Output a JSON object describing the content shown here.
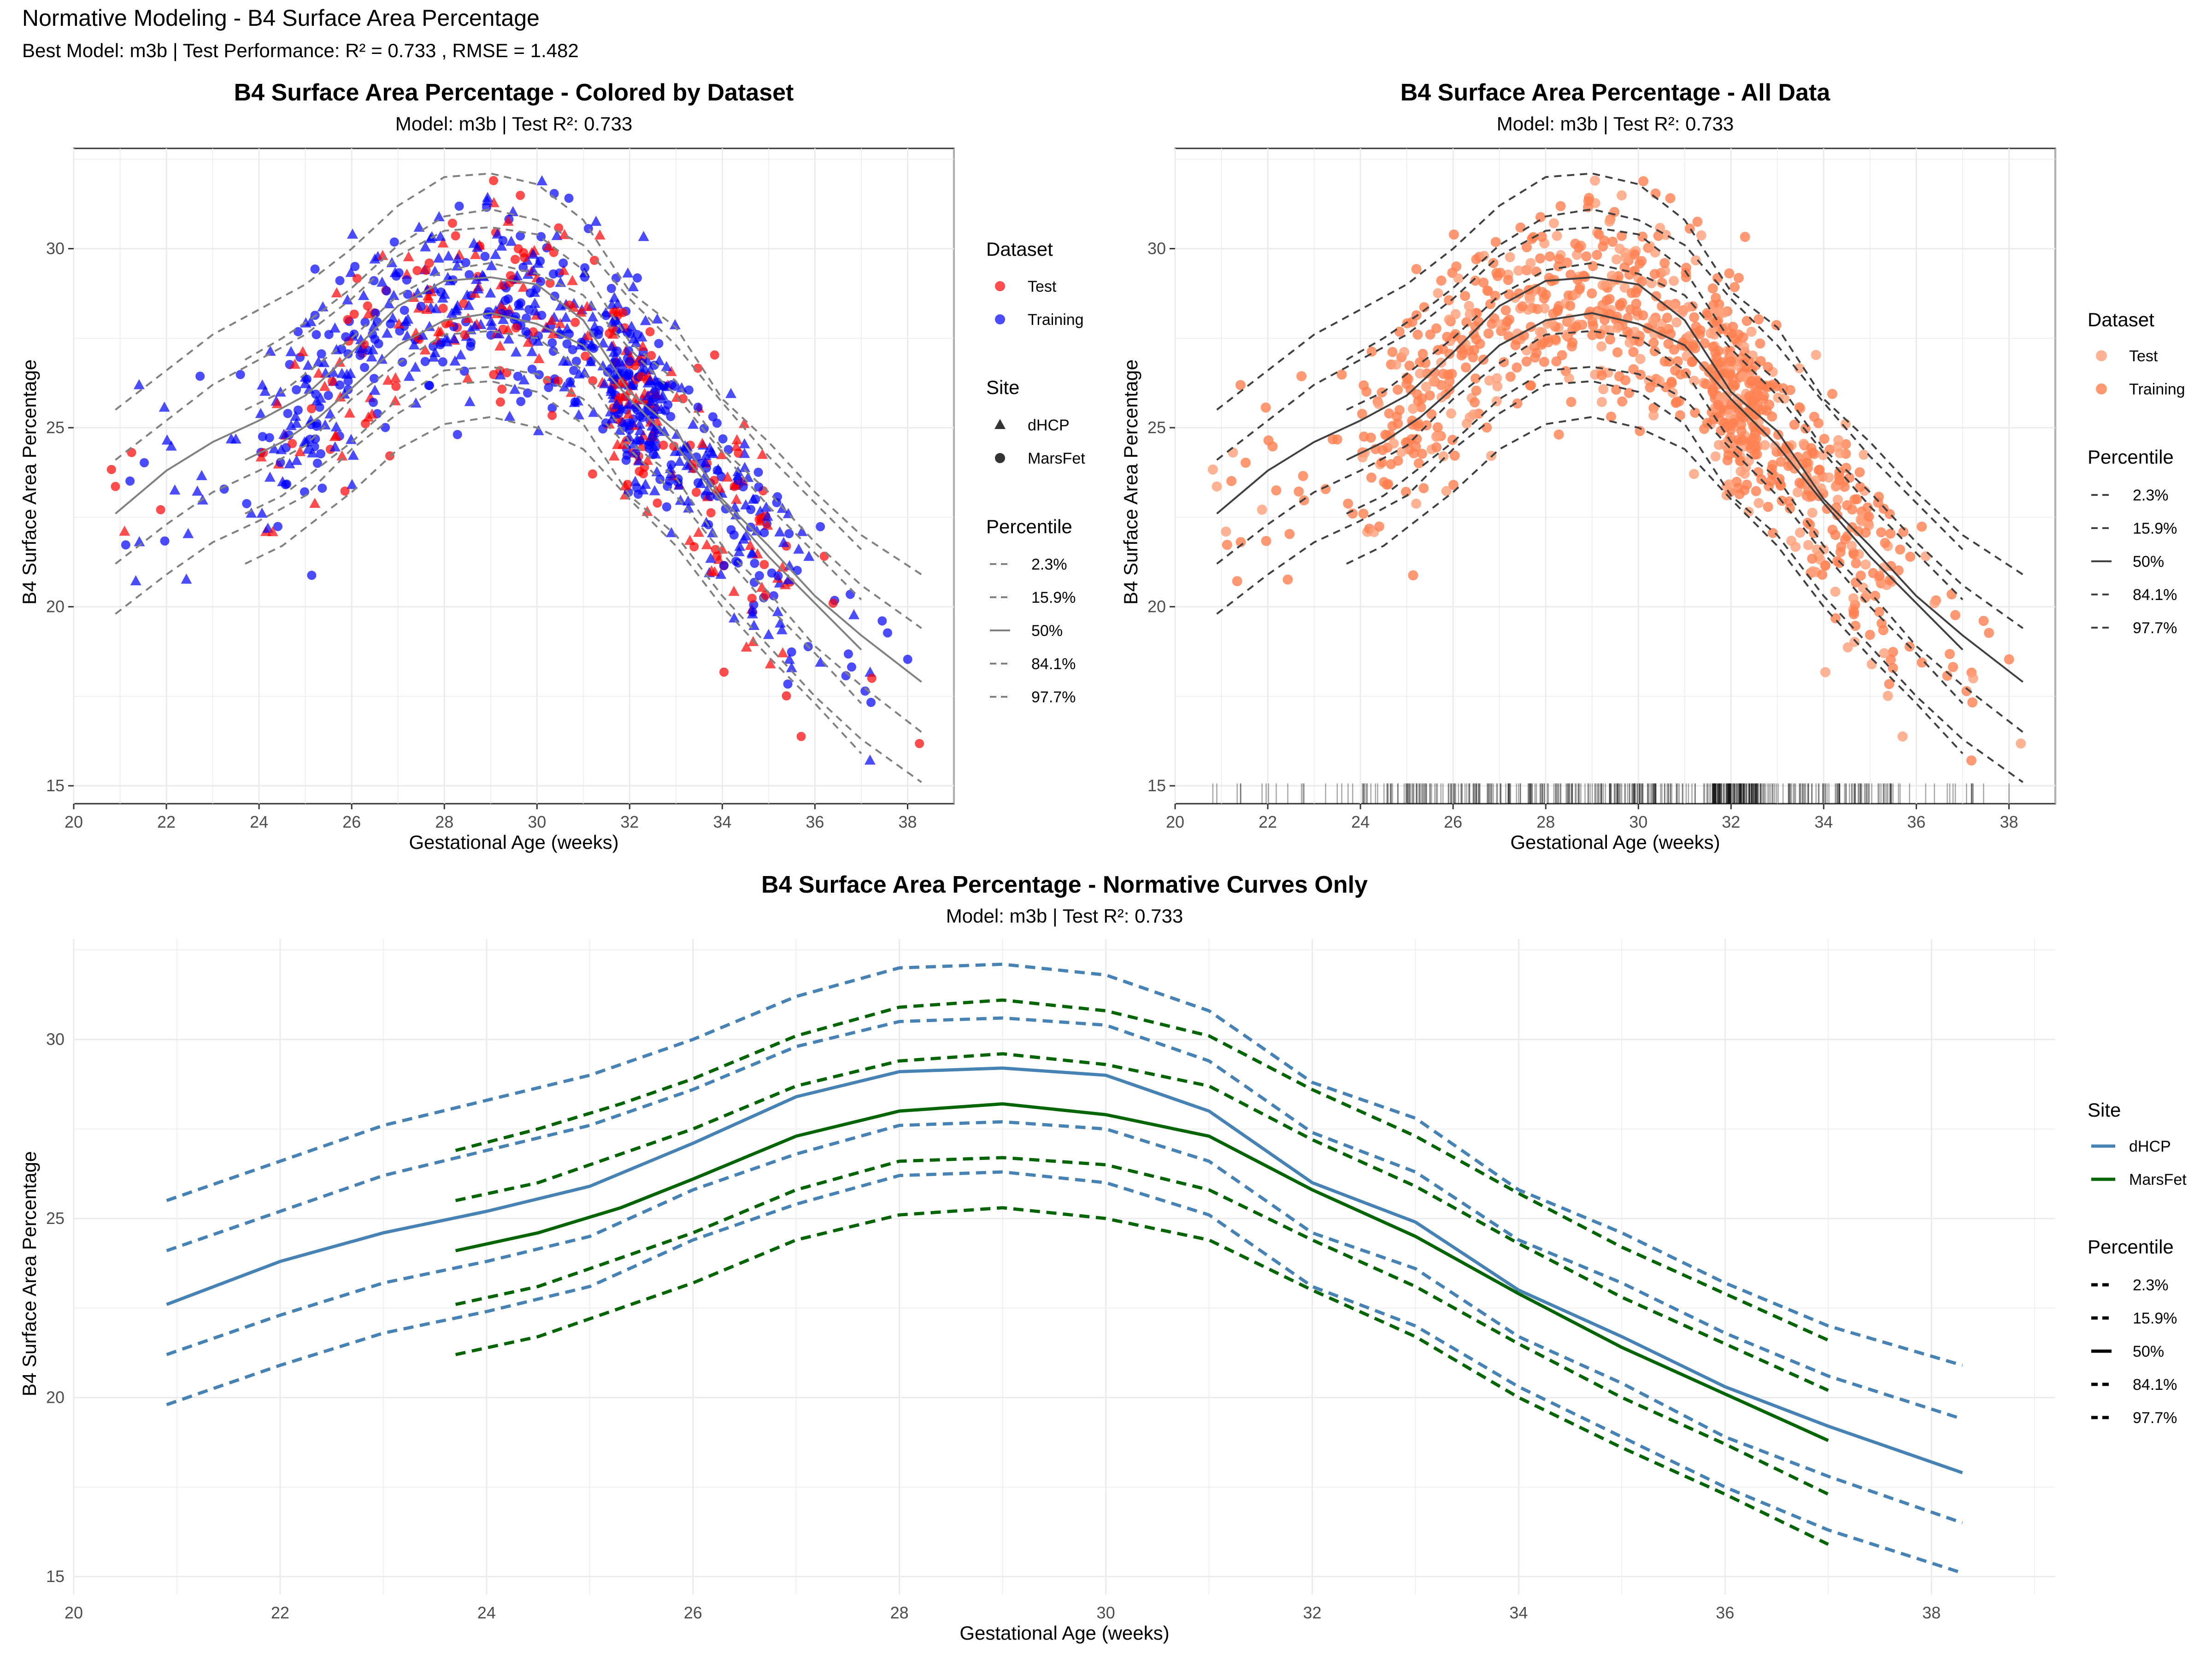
{
  "figure": {
    "title": "Normative Modeling - B4 Surface Area Percentage",
    "subtitle": "Best Model: m3b | Test Performance: R² = 0.733 , RMSE = 1.482"
  },
  "colors": {
    "test": "#ff0000",
    "training": "#0000ff",
    "all_test": "#ffa07a",
    "all_training": "#ff7f50",
    "dhcp": "#4682b4",
    "marsfet": "#006400",
    "grid": "#ebebeb",
    "border": "#333333",
    "curve_grey": "#808080",
    "curve_dark": "#404040"
  },
  "chart_data": [
    {
      "type": "scatter",
      "title": "B4 Surface Area Percentage - Colored by Dataset",
      "subtitle": "Model: m3b | Test R²: 0.733",
      "xlabel": "Gestational Age (weeks)",
      "ylabel": "B4 Surface Area Percentage",
      "xlim": [
        20,
        39
      ],
      "ylim": [
        14.5,
        32.8
      ],
      "xticks": [
        20,
        22,
        24,
        26,
        28,
        30,
        32,
        34,
        36,
        38
      ],
      "yticks": [
        15,
        20,
        25,
        30
      ],
      "grid": true,
      "legends": [
        {
          "title": "Dataset",
          "entries": [
            "Test",
            "Training"
          ]
        },
        {
          "title": "Site",
          "entries": [
            "dHCP",
            "MarsFet"
          ]
        },
        {
          "title": "Percentile",
          "entries": [
            "2.3%",
            "15.9%",
            "50%",
            "84.1%",
            "97.7%"
          ]
        }
      ],
      "legend_position": "right",
      "x_range": [
        20.8,
        38.3
      ],
      "point_count": 1000,
      "point_seed": 7,
      "color_by": "dataset",
      "shape_by": "site",
      "curves": "percentiles_combined",
      "rug": false
    },
    {
      "type": "scatter",
      "title": "B4 Surface Area Percentage - All Data",
      "subtitle": "Model: m3b | Test R²: 0.733",
      "xlabel": "Gestational Age (weeks)",
      "ylabel": "B4 Surface Area Percentage",
      "xlim": [
        20,
        39
      ],
      "ylim": [
        14.5,
        32.8
      ],
      "xticks": [
        20,
        22,
        24,
        26,
        28,
        30,
        32,
        34,
        36,
        38
      ],
      "yticks": [
        15,
        20,
        25,
        30
      ],
      "grid": true,
      "legends": [
        {
          "title": "Dataset",
          "entries": [
            "Test",
            "Training"
          ]
        },
        {
          "title": "Percentile",
          "entries": [
            "2.3%",
            "15.9%",
            "50%",
            "84.1%",
            "97.7%"
          ]
        }
      ],
      "legend_position": "right",
      "x_range": [
        20.8,
        38.3
      ],
      "point_count": 1000,
      "point_seed": 7,
      "color_by": "dataset",
      "shape_by": "none",
      "curves": "percentiles_by_site",
      "rug": true
    },
    {
      "type": "line",
      "title": "B4 Surface Area Percentage - Normative Curves Only",
      "subtitle": "Model: m3b | Test R²: 0.733",
      "xlabel": "Gestational Age (weeks)",
      "ylabel": "B4 Surface Area Percentage",
      "xlim": [
        20,
        39.2
      ],
      "ylim": [
        14.5,
        32.8
      ],
      "xticks": [
        20,
        22,
        24,
        26,
        28,
        30,
        32,
        34,
        36,
        38
      ],
      "yticks": [
        15,
        20,
        25,
        30
      ],
      "grid": true,
      "legends": [
        {
          "title": "Site",
          "entries": [
            "dHCP",
            "MarsFet"
          ]
        },
        {
          "title": "Percentile",
          "entries": [
            "2.3%",
            "15.9%",
            "50%",
            "84.1%",
            "97.7%"
          ]
        }
      ],
      "legend_position": "right",
      "series": [
        {
          "site": "dHCP",
          "x": [
            20.9,
            22,
            23,
            24,
            25,
            26,
            27,
            28,
            29,
            30,
            31,
            32,
            33,
            34,
            35,
            36,
            37,
            38.3
          ],
          "p50": [
            22.6,
            23.8,
            24.6,
            25.2,
            25.9,
            27.1,
            28.4,
            29.1,
            29.2,
            29.0,
            28.0,
            26.0,
            24.9,
            23.0,
            21.7,
            20.3,
            19.2,
            17.9
          ],
          "p15_9": [
            21.2,
            22.3,
            23.2,
            23.8,
            24.5,
            25.8,
            26.8,
            27.6,
            27.7,
            27.5,
            26.6,
            24.6,
            23.6,
            21.7,
            20.4,
            18.9,
            17.8,
            16.5
          ],
          "p2_3": [
            19.8,
            20.9,
            21.8,
            22.4,
            23.1,
            24.4,
            25.4,
            26.2,
            26.3,
            26.0,
            25.1,
            23.1,
            22.0,
            20.3,
            18.9,
            17.5,
            16.3,
            15.1
          ],
          "p84_1": [
            24.1,
            25.2,
            26.2,
            26.9,
            27.6,
            28.6,
            29.8,
            30.5,
            30.6,
            30.4,
            29.4,
            27.4,
            26.3,
            24.4,
            23.2,
            21.8,
            20.6,
            19.4
          ],
          "p97_7": [
            25.5,
            26.6,
            27.6,
            28.3,
            29.0,
            30.0,
            31.2,
            32.0,
            32.1,
            31.8,
            30.8,
            28.8,
            27.8,
            25.8,
            24.6,
            23.2,
            22.0,
            20.9
          ]
        },
        {
          "site": "MarsFet",
          "x": [
            23.7,
            24.5,
            25.3,
            26,
            27,
            28,
            29,
            30,
            31,
            32,
            33,
            34,
            35,
            36,
            37
          ],
          "p50": [
            24.1,
            24.6,
            25.3,
            26.1,
            27.3,
            28.0,
            28.2,
            27.9,
            27.3,
            25.8,
            24.5,
            22.9,
            21.4,
            20.1,
            18.8
          ],
          "p15_9": [
            22.6,
            23.1,
            23.9,
            24.6,
            25.8,
            26.6,
            26.7,
            26.5,
            25.8,
            24.4,
            23.1,
            21.5,
            20.0,
            18.7,
            17.3
          ],
          "p2_3": [
            21.2,
            21.7,
            22.5,
            23.2,
            24.4,
            25.1,
            25.3,
            25.0,
            24.4,
            23.0,
            21.7,
            20.0,
            18.6,
            17.3,
            15.9
          ],
          "p84_1": [
            25.5,
            26.0,
            26.8,
            27.5,
            28.7,
            29.4,
            29.6,
            29.3,
            28.7,
            27.2,
            25.9,
            24.3,
            22.8,
            21.5,
            20.2
          ],
          "p97_7": [
            26.9,
            27.5,
            28.2,
            28.9,
            30.1,
            30.9,
            31.1,
            30.8,
            30.1,
            28.6,
            27.3,
            25.7,
            24.2,
            22.9,
            21.6
          ]
        }
      ]
    }
  ]
}
